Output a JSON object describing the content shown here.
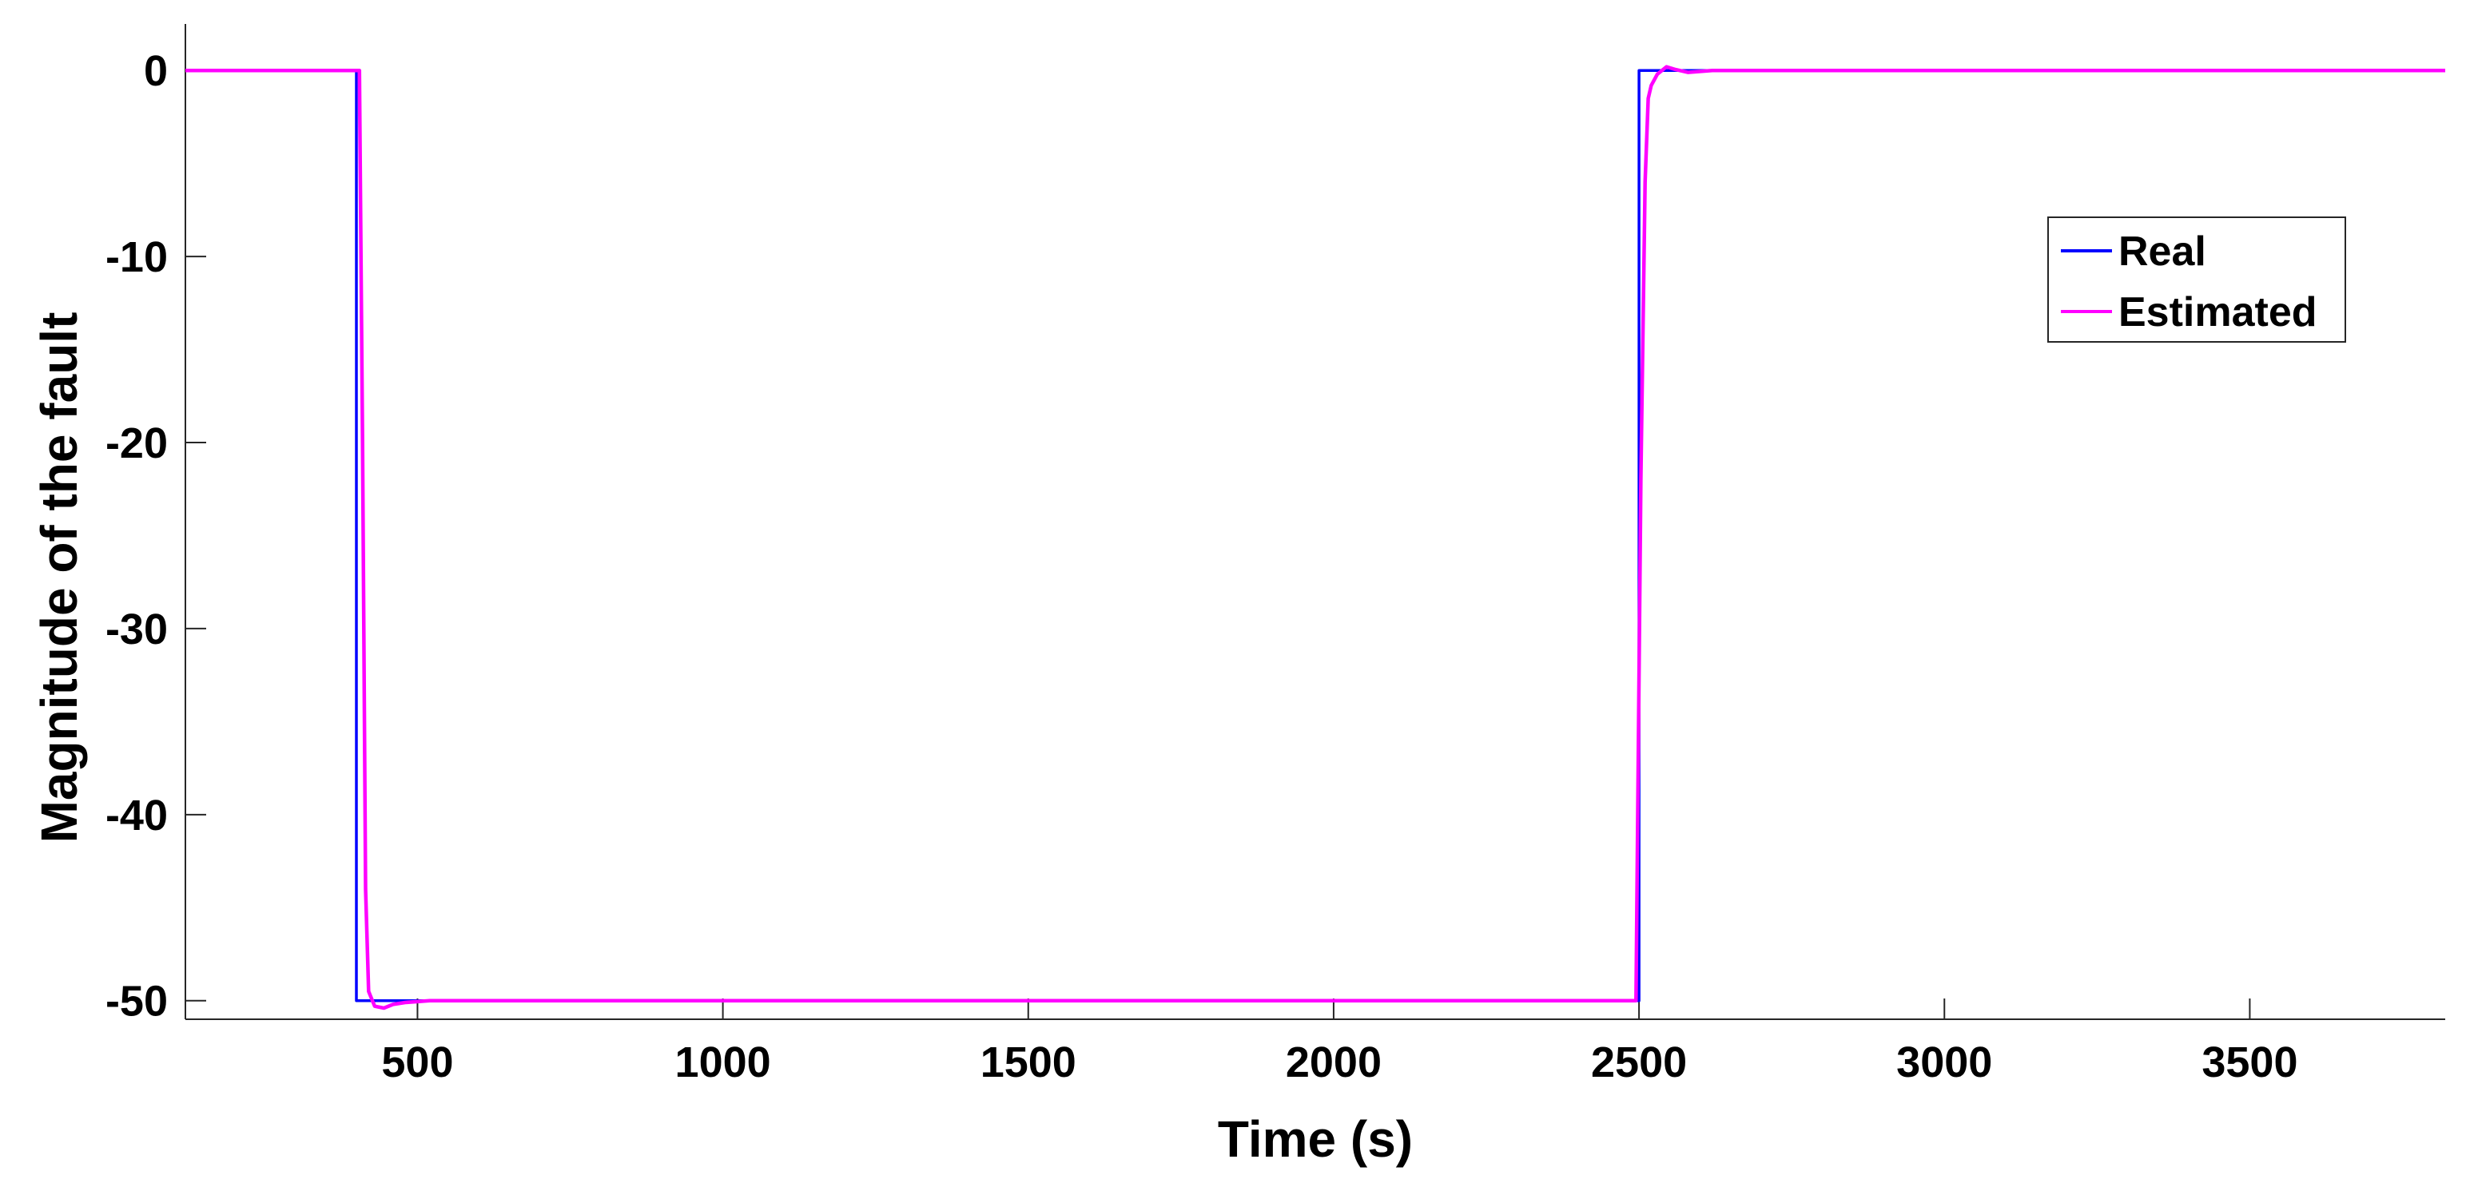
{
  "chart_data": {
    "type": "line",
    "xlabel": "Time (s)",
    "ylabel": "Magnitude of the fault",
    "xlim": [
      120,
      3820
    ],
    "ylim": [
      -51,
      2.5
    ],
    "xticks": [
      500,
      1000,
      1500,
      2000,
      2500,
      3000,
      3500
    ],
    "yticks": [
      0,
      -10,
      -20,
      -30,
      -40,
      -50
    ],
    "xtick_labels": [
      "500",
      "1000",
      "1500",
      "2000",
      "2500",
      "3000",
      "3500"
    ],
    "ytick_labels": [
      "0",
      "-10",
      "-20",
      "-30",
      "-40",
      "-50"
    ],
    "grid": false,
    "legend_position": "top-right",
    "series": [
      {
        "name": "Real",
        "color": "#0000ff",
        "x": [
          120,
          400,
          400,
          2500,
          2500,
          3820
        ],
        "y": [
          0,
          0,
          -50,
          -50,
          0,
          0
        ]
      },
      {
        "name": "Estimated",
        "color": "#ff00ff",
        "x": [
          120,
          405,
          410,
          415,
          420,
          430,
          445,
          460,
          480,
          520,
          600,
          2495,
          2503,
          2510,
          2515,
          2520,
          2530,
          2545,
          2560,
          2580,
          2620,
          2700,
          3820
        ],
        "y": [
          0,
          0,
          -20,
          -44,
          -49.5,
          -50.3,
          -50.4,
          -50.2,
          -50.1,
          -50,
          -50,
          -50,
          -22,
          -6,
          -1.5,
          -0.8,
          -0.2,
          0.2,
          0.05,
          -0.1,
          0,
          0,
          0
        ]
      }
    ]
  }
}
